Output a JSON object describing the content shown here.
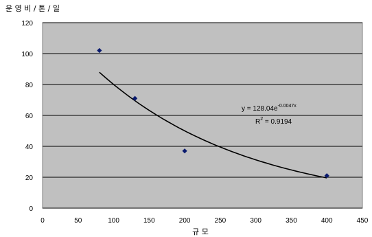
{
  "chart_data": {
    "type": "scatter",
    "ylabel": "운 영 비 / 톤 / 일",
    "xlabel": "규 모",
    "xlim": [
      0,
      450
    ],
    "ylim": [
      0,
      120
    ],
    "xticks": [
      0,
      50,
      100,
      150,
      200,
      250,
      300,
      350,
      400,
      450
    ],
    "yticks": [
      0,
      20,
      40,
      60,
      80,
      100,
      120
    ],
    "grid": "horizontal",
    "points": [
      {
        "x": 80,
        "y": 102
      },
      {
        "x": 130,
        "y": 71
      },
      {
        "x": 200,
        "y": 37
      },
      {
        "x": 400,
        "y": 21
      }
    ],
    "trendline": {
      "type": "exponential",
      "a": 128.04,
      "b": -0.0047,
      "x_range": [
        80,
        400
      ],
      "equation_prefix": "y = 128.04e",
      "equation_exponent": "-0.0047x",
      "r2_prefix": "R",
      "r2_exponent": "2",
      "r2_suffix": " = 0.9194"
    },
    "colors": {
      "plot_background": "#c0c0c0",
      "gridline": "#000000",
      "marker": "#0a1a6e",
      "trendline": "#000000"
    }
  }
}
